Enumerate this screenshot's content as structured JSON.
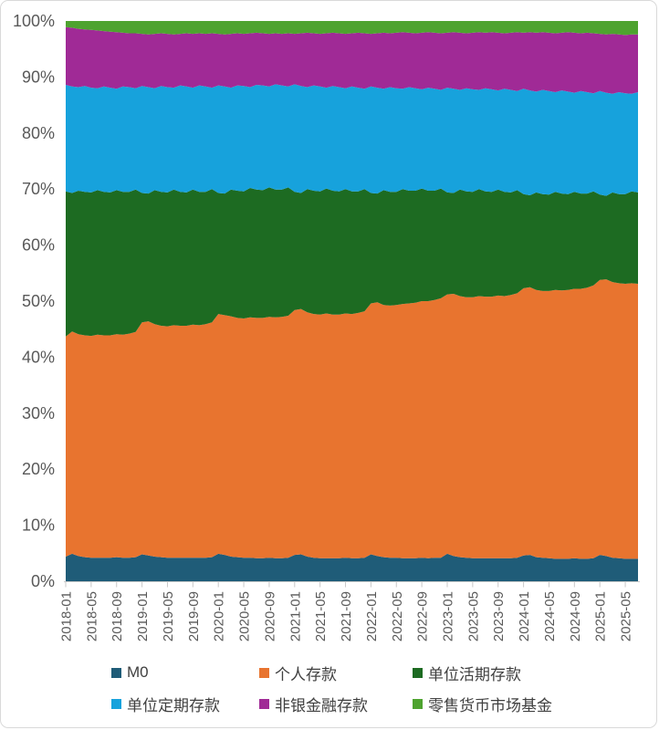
{
  "frame": {
    "background": "#ffffff",
    "border_color": "#d9d9d9"
  },
  "chart_data": {
    "type": "area",
    "stacked": true,
    "percent_stacked": true,
    "title": "",
    "xlabel": "",
    "ylabel": "",
    "ylim": [
      0,
      100
    ],
    "grid": false,
    "legend_position": "bottom",
    "axis_text_color": "#595959",
    "axis_line_color": "#c8c8c8",
    "y_ticks": [
      "0%",
      "10%",
      "20%",
      "30%",
      "40%",
      "50%",
      "60%",
      "70%",
      "80%",
      "90%",
      "100%"
    ],
    "x_tick_every": 4,
    "x_tick_labels": [
      "2018-01",
      "2018-05",
      "2018-09",
      "2019-01",
      "2019-05",
      "2019-09",
      "2020-01",
      "2020-05",
      "2020-09",
      "2021-01",
      "2021-05",
      "2021-09",
      "2022-01",
      "2022-05",
      "2022-09",
      "2023-01",
      "2023-05",
      "2023-09",
      "2024-01",
      "2024-05",
      "2024-09",
      "2025-01",
      "2025-05"
    ],
    "x": [
      "2018-01",
      "2018-02",
      "2018-03",
      "2018-04",
      "2018-05",
      "2018-06",
      "2018-07",
      "2018-08",
      "2018-09",
      "2018-10",
      "2018-11",
      "2018-12",
      "2019-01",
      "2019-02",
      "2019-03",
      "2019-04",
      "2019-05",
      "2019-06",
      "2019-07",
      "2019-08",
      "2019-09",
      "2019-10",
      "2019-11",
      "2019-12",
      "2020-01",
      "2020-02",
      "2020-03",
      "2020-04",
      "2020-05",
      "2020-06",
      "2020-07",
      "2020-08",
      "2020-09",
      "2020-10",
      "2020-11",
      "2020-12",
      "2021-01",
      "2021-02",
      "2021-03",
      "2021-04",
      "2021-05",
      "2021-06",
      "2021-07",
      "2021-08",
      "2021-09",
      "2021-10",
      "2021-11",
      "2021-12",
      "2022-01",
      "2022-02",
      "2022-03",
      "2022-04",
      "2022-05",
      "2022-06",
      "2022-07",
      "2022-08",
      "2022-09",
      "2022-10",
      "2022-11",
      "2022-12",
      "2023-01",
      "2023-02",
      "2023-03",
      "2023-04",
      "2023-05",
      "2023-06",
      "2023-07",
      "2023-08",
      "2023-09",
      "2023-10",
      "2023-11",
      "2023-12",
      "2024-01",
      "2024-02",
      "2024-03",
      "2024-04",
      "2024-05",
      "2024-06",
      "2024-07",
      "2024-08",
      "2024-09",
      "2024-10",
      "2024-11",
      "2024-12",
      "2025-01",
      "2025-02",
      "2025-03",
      "2025-04",
      "2025-05",
      "2025-06",
      "2025-07"
    ],
    "series": [
      {
        "key": "m0",
        "name": "M0",
        "color": "#1f5c78",
        "values": [
          4.4,
          4.9,
          4.5,
          4.3,
          4.2,
          4.2,
          4.2,
          4.2,
          4.3,
          4.2,
          4.2,
          4.3,
          4.8,
          4.6,
          4.4,
          4.3,
          4.2,
          4.2,
          4.2,
          4.2,
          4.2,
          4.2,
          4.2,
          4.3,
          4.9,
          4.7,
          4.4,
          4.3,
          4.2,
          4.2,
          4.1,
          4.1,
          4.2,
          4.1,
          4.1,
          4.2,
          4.7,
          4.8,
          4.4,
          4.2,
          4.1,
          4.1,
          4.1,
          4.1,
          4.2,
          4.1,
          4.1,
          4.2,
          4.8,
          4.5,
          4.3,
          4.2,
          4.2,
          4.1,
          4.1,
          4.1,
          4.2,
          4.1,
          4.2,
          4.2,
          4.9,
          4.5,
          4.3,
          4.2,
          4.1,
          4.1,
          4.1,
          4.1,
          4.1,
          4.1,
          4.1,
          4.2,
          4.6,
          4.7,
          4.3,
          4.2,
          4.1,
          4.0,
          4.0,
          4.0,
          4.1,
          4.0,
          4.0,
          4.1,
          4.7,
          4.5,
          4.2,
          4.1,
          4.0,
          4.0,
          4.0
        ]
      },
      {
        "key": "personal-deposits",
        "name": "个人存款",
        "color": "#e8742f",
        "values": [
          39.3,
          39.7,
          39.6,
          39.6,
          39.6,
          39.8,
          39.7,
          39.7,
          39.8,
          39.8,
          40.0,
          40.2,
          41.4,
          41.8,
          41.5,
          41.3,
          41.3,
          41.5,
          41.4,
          41.4,
          41.6,
          41.5,
          41.7,
          41.9,
          42.8,
          42.8,
          42.9,
          42.7,
          42.7,
          42.9,
          42.9,
          42.9,
          43.0,
          43.0,
          43.1,
          43.2,
          43.7,
          43.8,
          43.6,
          43.5,
          43.5,
          43.7,
          43.5,
          43.5,
          43.6,
          43.6,
          43.8,
          44.0,
          44.8,
          45.3,
          45.0,
          45.0,
          45.1,
          45.4,
          45.5,
          45.6,
          45.8,
          45.9,
          46.0,
          46.3,
          46.3,
          46.8,
          46.6,
          46.5,
          46.6,
          46.8,
          46.7,
          46.7,
          46.9,
          46.8,
          47.0,
          47.2,
          47.7,
          47.8,
          47.7,
          47.6,
          47.7,
          48.0,
          47.9,
          48.0,
          48.1,
          48.2,
          48.4,
          48.7,
          49.1,
          49.4,
          49.2,
          49.1,
          49.1,
          49.2,
          49.1
        ]
      },
      {
        "key": "corporate-demand-deposits",
        "name": "单位活期存款",
        "color": "#1d6b22",
        "values": [
          25.9,
          24.7,
          25.6,
          25.6,
          25.6,
          25.8,
          25.6,
          25.5,
          25.7,
          25.5,
          25.3,
          25.4,
          23.1,
          22.8,
          23.9,
          23.9,
          23.9,
          24.2,
          23.9,
          23.8,
          24.1,
          23.8,
          23.6,
          23.8,
          21.6,
          21.7,
          22.6,
          22.7,
          22.7,
          23.1,
          22.9,
          22.8,
          23.1,
          22.8,
          22.7,
          22.9,
          21.1,
          20.7,
          22.0,
          22.0,
          22.0,
          22.3,
          22.1,
          22.0,
          22.2,
          21.9,
          21.7,
          21.8,
          19.7,
          19.4,
          20.5,
          20.3,
          20.2,
          20.5,
          20.1,
          20.0,
          20.1,
          19.7,
          19.5,
          19.6,
          18.2,
          18.0,
          19.0,
          18.9,
          18.8,
          19.1,
          18.8,
          18.7,
          18.9,
          18.6,
          18.3,
          18.4,
          16.8,
          16.4,
          17.4,
          17.3,
          17.2,
          17.5,
          17.3,
          17.1,
          17.3,
          17.0,
          16.8,
          16.8,
          15.2,
          14.9,
          16.0,
          15.9,
          16.0,
          16.4,
          16.3
        ]
      },
      {
        "key": "corporate-time-deposits",
        "name": "单位定期存款",
        "color": "#17a2dc",
        "values": [
          19.0,
          19.0,
          18.5,
          18.9,
          18.7,
          18.2,
          18.8,
          18.7,
          18.1,
          18.8,
          18.7,
          18.1,
          19.1,
          19.0,
          18.2,
          18.9,
          18.8,
          18.2,
          19.0,
          18.9,
          18.2,
          19.0,
          18.8,
          18.1,
          19.2,
          19.1,
          18.2,
          18.8,
          18.8,
          18.0,
          18.7,
          18.7,
          18.0,
          18.8,
          18.6,
          18.0,
          19.2,
          19.1,
          18.2,
          18.8,
          18.7,
          18.0,
          18.7,
          18.6,
          18.0,
          18.7,
          18.5,
          17.9,
          19.0,
          18.9,
          18.1,
          18.7,
          18.5,
          17.9,
          18.5,
          18.3,
          17.7,
          18.4,
          18.2,
          17.6,
          18.7,
          18.6,
          17.8,
          18.4,
          18.3,
          17.7,
          18.4,
          18.3,
          17.7,
          18.4,
          18.3,
          17.7,
          18.8,
          18.7,
          18.0,
          18.6,
          18.5,
          17.8,
          18.4,
          18.3,
          17.7,
          18.3,
          18.1,
          17.5,
          18.5,
          18.4,
          17.6,
          18.2,
          18.0,
          17.4,
          17.9
        ]
      },
      {
        "key": "nonbank-financial-deposits",
        "name": "非银金融存款",
        "color": "#a02a96",
        "values": [
          10.3,
          10.5,
          10.4,
          10.1,
          10.3,
          10.3,
          9.9,
          10.0,
          10.1,
          9.6,
          9.6,
          9.8,
          9.3,
          9.4,
          9.7,
          9.4,
          9.5,
          9.5,
          9.2,
          9.5,
          9.6,
          9.3,
          9.4,
          9.7,
          9.2,
          9.3,
          9.6,
          9.3,
          9.3,
          9.6,
          9.3,
          9.3,
          9.4,
          9.1,
          9.2,
          9.5,
          9.0,
          9.4,
          9.7,
          9.3,
          9.4,
          9.7,
          9.5,
          9.6,
          9.7,
          9.5,
          9.8,
          9.9,
          9.4,
          9.7,
          10.0,
          9.6,
          9.9,
          10.1,
          9.7,
          9.8,
          10.1,
          9.9,
          10.0,
          10.1,
          9.8,
          10.1,
          10.2,
          9.8,
          10.1,
          10.3,
          9.9,
          10.2,
          10.3,
          9.9,
          10.2,
          10.5,
          10.0,
          10.4,
          10.5,
          10.3,
          10.4,
          10.5,
          10.3,
          10.6,
          10.7,
          10.3,
          10.6,
          10.7,
          10.2,
          10.4,
          10.7,
          10.3,
          10.4,
          10.6,
          10.3
        ]
      },
      {
        "key": "retail-money-market-fund",
        "name": "零售货币市场基金",
        "color": "#4ea32f",
        "values": [
          1.1,
          1.2,
          1.4,
          1.5,
          1.6,
          1.7,
          1.8,
          1.9,
          2.0,
          2.1,
          2.2,
          2.2,
          2.3,
          2.4,
          2.3,
          2.2,
          2.3,
          2.4,
          2.3,
          2.2,
          2.3,
          2.2,
          2.3,
          2.2,
          2.3,
          2.4,
          2.3,
          2.2,
          2.3,
          2.2,
          2.1,
          2.2,
          2.3,
          2.2,
          2.3,
          2.2,
          2.3,
          2.2,
          2.1,
          2.2,
          2.3,
          2.2,
          2.1,
          2.2,
          2.3,
          2.2,
          2.1,
          2.2,
          2.3,
          2.2,
          2.1,
          2.2,
          2.1,
          2.0,
          2.1,
          2.2,
          2.1,
          2.0,
          2.1,
          2.2,
          2.1,
          2.0,
          2.1,
          2.2,
          2.1,
          2.0,
          2.1,
          2.0,
          2.1,
          2.2,
          2.1,
          2.0,
          2.1,
          2.0,
          2.1,
          2.0,
          2.1,
          2.2,
          2.1,
          2.0,
          2.1,
          2.2,
          2.1,
          2.2,
          2.3,
          2.4,
          2.3,
          2.4,
          2.5,
          2.4,
          2.4
        ]
      }
    ]
  }
}
